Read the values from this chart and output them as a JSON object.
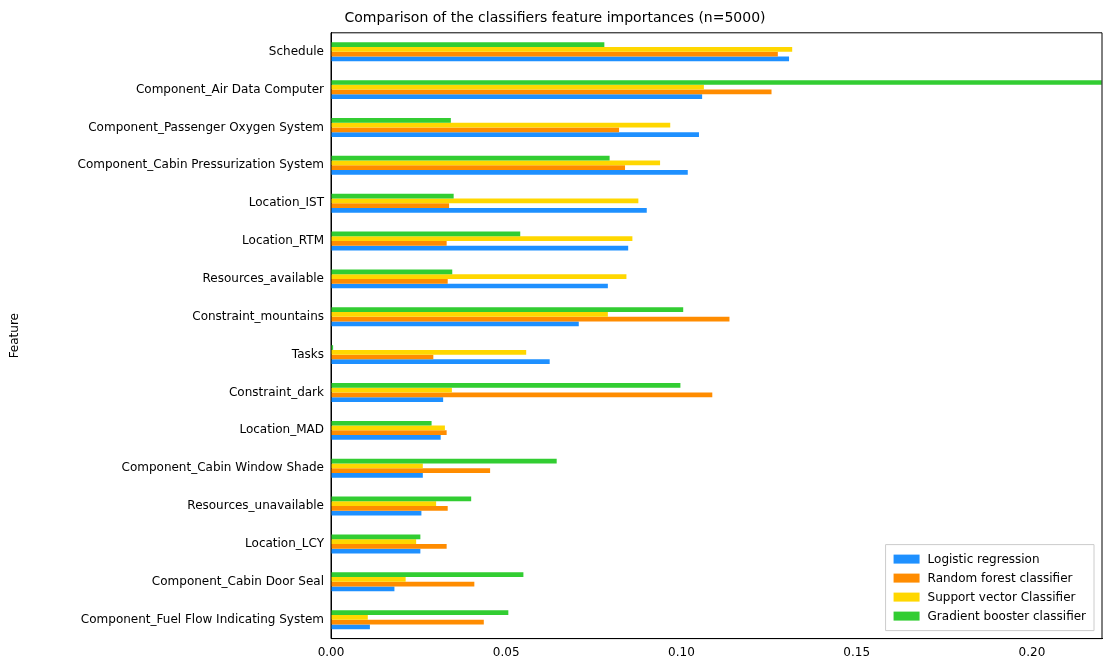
{
  "chart_data": {
    "type": "bar",
    "orientation": "horizontal",
    "title": "Comparison of the classifiers feature importances (n=5000)",
    "ylabel": "Feature",
    "categories": [
      "Schedule",
      "Component_Air Data Computer",
      "Component_Passenger Oxygen System",
      "Component_Cabin Pressurization System",
      "Location_IST",
      "Location_RTM",
      "Resources_available",
      "Constraint_mountains",
      "Tasks",
      "Constraint_dark",
      "Location_MAD",
      "Component_Cabin Window Shade",
      "Resources_unavailable",
      "Location_LCY",
      "Component_Cabin Door Seal",
      "Component_Fuel Flow Indicating System"
    ],
    "series": [
      {
        "name": "Logistic regression",
        "color": "#1e90ff",
        "values": [
          0.1307,
          0.1059,
          0.105,
          0.1018,
          0.0901,
          0.0848,
          0.079,
          0.0707,
          0.0624,
          0.032,
          0.0313,
          0.0262,
          0.0258,
          0.0255,
          0.0181,
          0.0111
        ]
      },
      {
        "name": "Random forest classifier",
        "color": "#ff8c00",
        "values": [
          0.1275,
          0.1257,
          0.0822,
          0.0839,
          0.0337,
          0.033,
          0.0333,
          0.1137,
          0.0292,
          0.1088,
          0.033,
          0.0454,
          0.0333,
          0.033,
          0.0409,
          0.0436
        ]
      },
      {
        "name": "Support vector Classifier",
        "color": "#ffd700",
        "values": [
          0.1316,
          0.1064,
          0.0968,
          0.0939,
          0.0877,
          0.086,
          0.0843,
          0.079,
          0.0557,
          0.0345,
          0.0325,
          0.0262,
          0.03,
          0.0243,
          0.0213,
          0.0105
        ]
      },
      {
        "name": "Gradient booster classifier",
        "color": "#32cd32",
        "values": [
          0.078,
          0.2199,
          0.0342,
          0.0795,
          0.035,
          0.054,
          0.0346,
          0.1005,
          0.0006,
          0.0997,
          0.0287,
          0.0644,
          0.04,
          0.0255,
          0.0549,
          0.0506
        ]
      }
    ],
    "xlim": [
      0,
      0.22
    ],
    "xticks": [
      {
        "value": 0,
        "label": "0.00"
      },
      {
        "value": 0.05,
        "label": "0.05"
      },
      {
        "value": 0.1,
        "label": "0.10"
      },
      {
        "value": 0.15,
        "label": "0.15"
      },
      {
        "value": 0.2,
        "label": "0.20"
      }
    ],
    "grid": false,
    "legend": "bottom right"
  }
}
